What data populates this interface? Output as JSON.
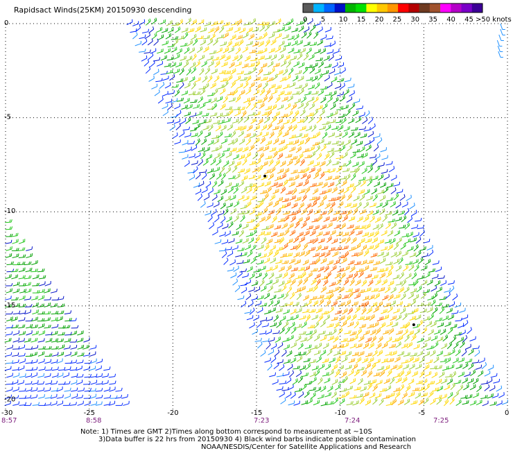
{
  "title": "Rapidsact Winds(25KM) 20150930 descending",
  "legend": {
    "unit": ">50 knots",
    "labels": [
      "0",
      "5",
      "10",
      "15",
      "20",
      "25",
      "30",
      "35",
      "40",
      "45"
    ],
    "colors": [
      "#5a5a5a",
      "#00b4ff",
      "#0064ff",
      "#0010c8",
      "#00b400",
      "#00e000",
      "#ffff00",
      "#ffc800",
      "#ff9600",
      "#ff0000",
      "#b40000",
      "#6e3a20",
      "#a0522d",
      "#ff00ff",
      "#b400c8",
      "#7a00c8",
      "#3c0096"
    ]
  },
  "axes": {
    "y_labels": [
      "0",
      "-5",
      "-10",
      "-15",
      "-20"
    ],
    "x_labels": [
      "-30",
      "-25",
      "-20",
      "-15",
      "-10",
      "-5",
      "0"
    ],
    "time_labels": [
      "8:57",
      "8:58",
      "7:23",
      "7:24",
      "7:25"
    ]
  },
  "notes": {
    "line1": "Note: 1) Times are GMT 2)Times along bottom correspond to measurement at ~10S",
    "line2": "3)Data buffer is 22 hrs from 20150930 4) Black wind barbs indicate possible contamination",
    "line3": "NOAA/NESDIS/Center for Satellite Applications and Research"
  },
  "swaths": {
    "main": {
      "lon_top": [
        -22.8,
        -11.2
      ],
      "lon_bottom": [
        -13.4,
        0
      ],
      "lat_range": [
        0,
        -20.5
      ]
    },
    "left": {
      "lon_edge_top": -30,
      "lat_top": -10.5,
      "lon_edge_bottom": -22.5,
      "lat_bottom": -20.5
    },
    "corner": {
      "lon": -0.5,
      "lat_range": [
        0,
        -1.5
      ]
    }
  },
  "wind_speed_knots_range": [
    5,
    30
  ],
  "contaminated_points": [
    {
      "lon": -14.5,
      "lat": -8.1
    },
    {
      "lon": -5.6,
      "lat": -16.0
    }
  ]
}
